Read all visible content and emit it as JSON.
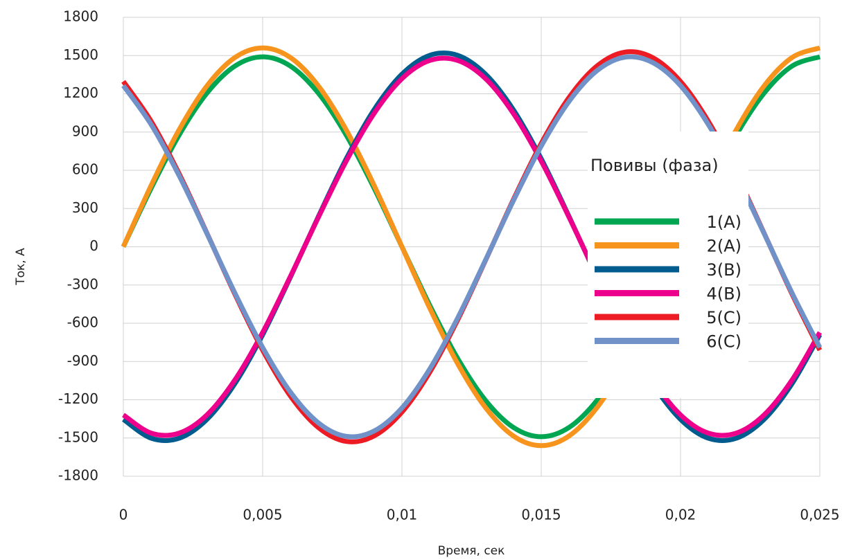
{
  "chart_data": {
    "type": "line",
    "xlabel": "Время, сек",
    "ylabel": "Ток, А",
    "x": [
      0,
      0.001,
      0.002,
      0.003,
      0.004,
      0.005,
      0.006,
      0.007,
      0.008,
      0.009,
      0.01,
      0.011,
      0.012,
      0.013,
      0.014,
      0.015,
      0.016,
      0.017,
      0.018,
      0.019,
      0.02,
      0.021,
      0.022,
      0.023,
      0.024,
      0.025
    ],
    "series": [
      {
        "name": "1(А)",
        "color": "#00a651",
        "values": [
          0,
          460,
          876,
          1205,
          1417,
          1490,
          1417,
          1205,
          876,
          460,
          0,
          -460,
          -876,
          -1205,
          -1417,
          -1490,
          -1417,
          -1205,
          -876,
          -460,
          0,
          460,
          876,
          1205,
          1417,
          1490
        ]
      },
      {
        "name": "2(А)",
        "color": "#f7941d",
        "values": [
          0,
          482,
          917,
          1262,
          1484,
          1560,
          1484,
          1262,
          917,
          482,
          0,
          -482,
          -917,
          -1262,
          -1484,
          -1560,
          -1484,
          -1262,
          -917,
          -482,
          0,
          482,
          917,
          1262,
          1484,
          1560
        ]
      },
      {
        "name": "3(В)",
        "color": "#005b8f",
        "values": [
          -1354,
          -1502,
          -1502,
          -1354,
          -1075,
          -690,
          -237,
          237,
          690,
          1075,
          1354,
          1502,
          1502,
          1354,
          1075,
          690,
          237,
          -237,
          -690,
          -1075,
          -1354,
          -1502,
          -1502,
          -1354,
          -1075,
          -690
        ]
      },
      {
        "name": "4(В)",
        "color": "#ec008c",
        "values": [
          -1319,
          -1462,
          -1462,
          -1319,
          -1046,
          -672,
          -231,
          231,
          672,
          1046,
          1319,
          1462,
          1462,
          1319,
          1046,
          672,
          231,
          -231,
          -672,
          -1046,
          -1319,
          -1462,
          -1462,
          -1319,
          -1046,
          -672
        ]
      },
      {
        "name": "5(С)",
        "color": "#ed1c24",
        "values": [
          1297,
          984,
          574,
          107,
          -370,
          -811,
          -1172,
          -1418,
          -1527,
          -1484,
          -1297,
          -984,
          -574,
          -107,
          370,
          811,
          1172,
          1418,
          1527,
          1484,
          1297,
          984,
          574,
          107,
          -370,
          -811
        ]
      },
      {
        "name": "6(С)",
        "color": "#7092c8",
        "values": [
          1264,
          958,
          559,
          104,
          -361,
          -790,
          -1141,
          -1381,
          -1487,
          -1445,
          -1264,
          -958,
          -559,
          -104,
          361,
          790,
          1141,
          1381,
          1487,
          1445,
          1264,
          958,
          559,
          104,
          -361,
          -790
        ]
      }
    ],
    "legend_title": "Повивы (фаза)",
    "legend_position": "right",
    "xlim": [
      0,
      0.025
    ],
    "xticks": [
      0,
      {
        "value": 0.005,
        "label": "0,005"
      },
      {
        "value": 0.01,
        "label": "0,01"
      },
      {
        "value": 0.015,
        "label": "0,015"
      },
      {
        "value": 0.02,
        "label": "0,02"
      },
      {
        "value": 0.025,
        "label": "0,025"
      }
    ],
    "ylim": [
      -1800,
      1800
    ],
    "yticks": [
      -1800,
      -1500,
      -1200,
      -900,
      -600,
      -300,
      0,
      300,
      600,
      900,
      1200,
      1500,
      1800
    ],
    "grid": true
  }
}
